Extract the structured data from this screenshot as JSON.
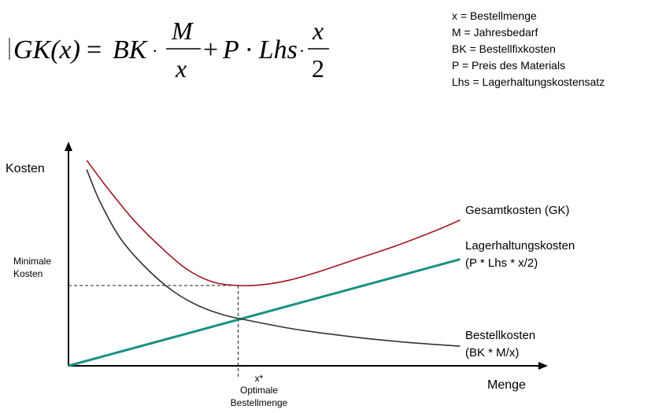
{
  "formula": {
    "lhs": "GK(x)",
    "eq": "=",
    "term1_prefix": "BK",
    "term1_num": "M",
    "term1_den": "x",
    "plus": "+",
    "term2_prefix": "P · Lhs",
    "term2_num": "x",
    "term2_den": "2",
    "dot": "·"
  },
  "legend": [
    "x = Bestellmenge",
    "M = Jahresbedarf",
    "BK = Bestellfixkosten",
    "P = Preis des Materials",
    "Lhs = Lagerhaltungskostensatz"
  ],
  "chart_data": {
    "type": "line",
    "title": "",
    "xlabel": "Menge",
    "ylabel": "Kosten",
    "grid": false,
    "axes_numeric_ticks": false,
    "series": [
      {
        "name": "Gesamtkosten (GK)",
        "color": "#a3151e",
        "points": [
          [
            0.07,
            1.1
          ],
          [
            0.15,
            0.95
          ],
          [
            0.25,
            0.78
          ],
          [
            0.35,
            0.64
          ],
          [
            0.45,
            0.52
          ],
          [
            0.55,
            0.45
          ],
          [
            0.65,
            0.43
          ],
          [
            0.75,
            0.435
          ],
          [
            0.85,
            0.46
          ],
          [
            0.95,
            0.5
          ],
          [
            1.1,
            0.57
          ],
          [
            1.25,
            0.64
          ],
          [
            1.4,
            0.72
          ],
          [
            1.5,
            0.78
          ]
        ]
      },
      {
        "name": "Lagerhaltungskosten",
        "name_line2": "(P * Lhs * x/2)",
        "color": "#1a9183",
        "points": [
          [
            0.0,
            0.0
          ],
          [
            1.5,
            0.57
          ]
        ]
      },
      {
        "name": "Bestellkosten",
        "name_line2": "(BK * M/x)",
        "color": "#333333",
        "points": [
          [
            0.07,
            1.05
          ],
          [
            0.12,
            0.88
          ],
          [
            0.2,
            0.68
          ],
          [
            0.3,
            0.52
          ],
          [
            0.4,
            0.4
          ],
          [
            0.5,
            0.32
          ],
          [
            0.6,
            0.27
          ],
          [
            0.7,
            0.24
          ],
          [
            0.85,
            0.2
          ],
          [
            1.0,
            0.17
          ],
          [
            1.15,
            0.145
          ],
          [
            1.3,
            0.125
          ],
          [
            1.45,
            0.11
          ],
          [
            1.5,
            0.105
          ]
        ]
      }
    ],
    "annotations": {
      "min_cost_label": [
        "Minimale",
        "Kosten"
      ],
      "min_cost_value": 0.43,
      "optimum_x": 0.65,
      "optimum_y": 0.248,
      "optimum_labels": [
        "x*",
        "Optimale",
        "Bestellmenge"
      ]
    },
    "xlim": [
      0,
      1.8
    ],
    "ylim": [
      0,
      1.2
    ]
  }
}
